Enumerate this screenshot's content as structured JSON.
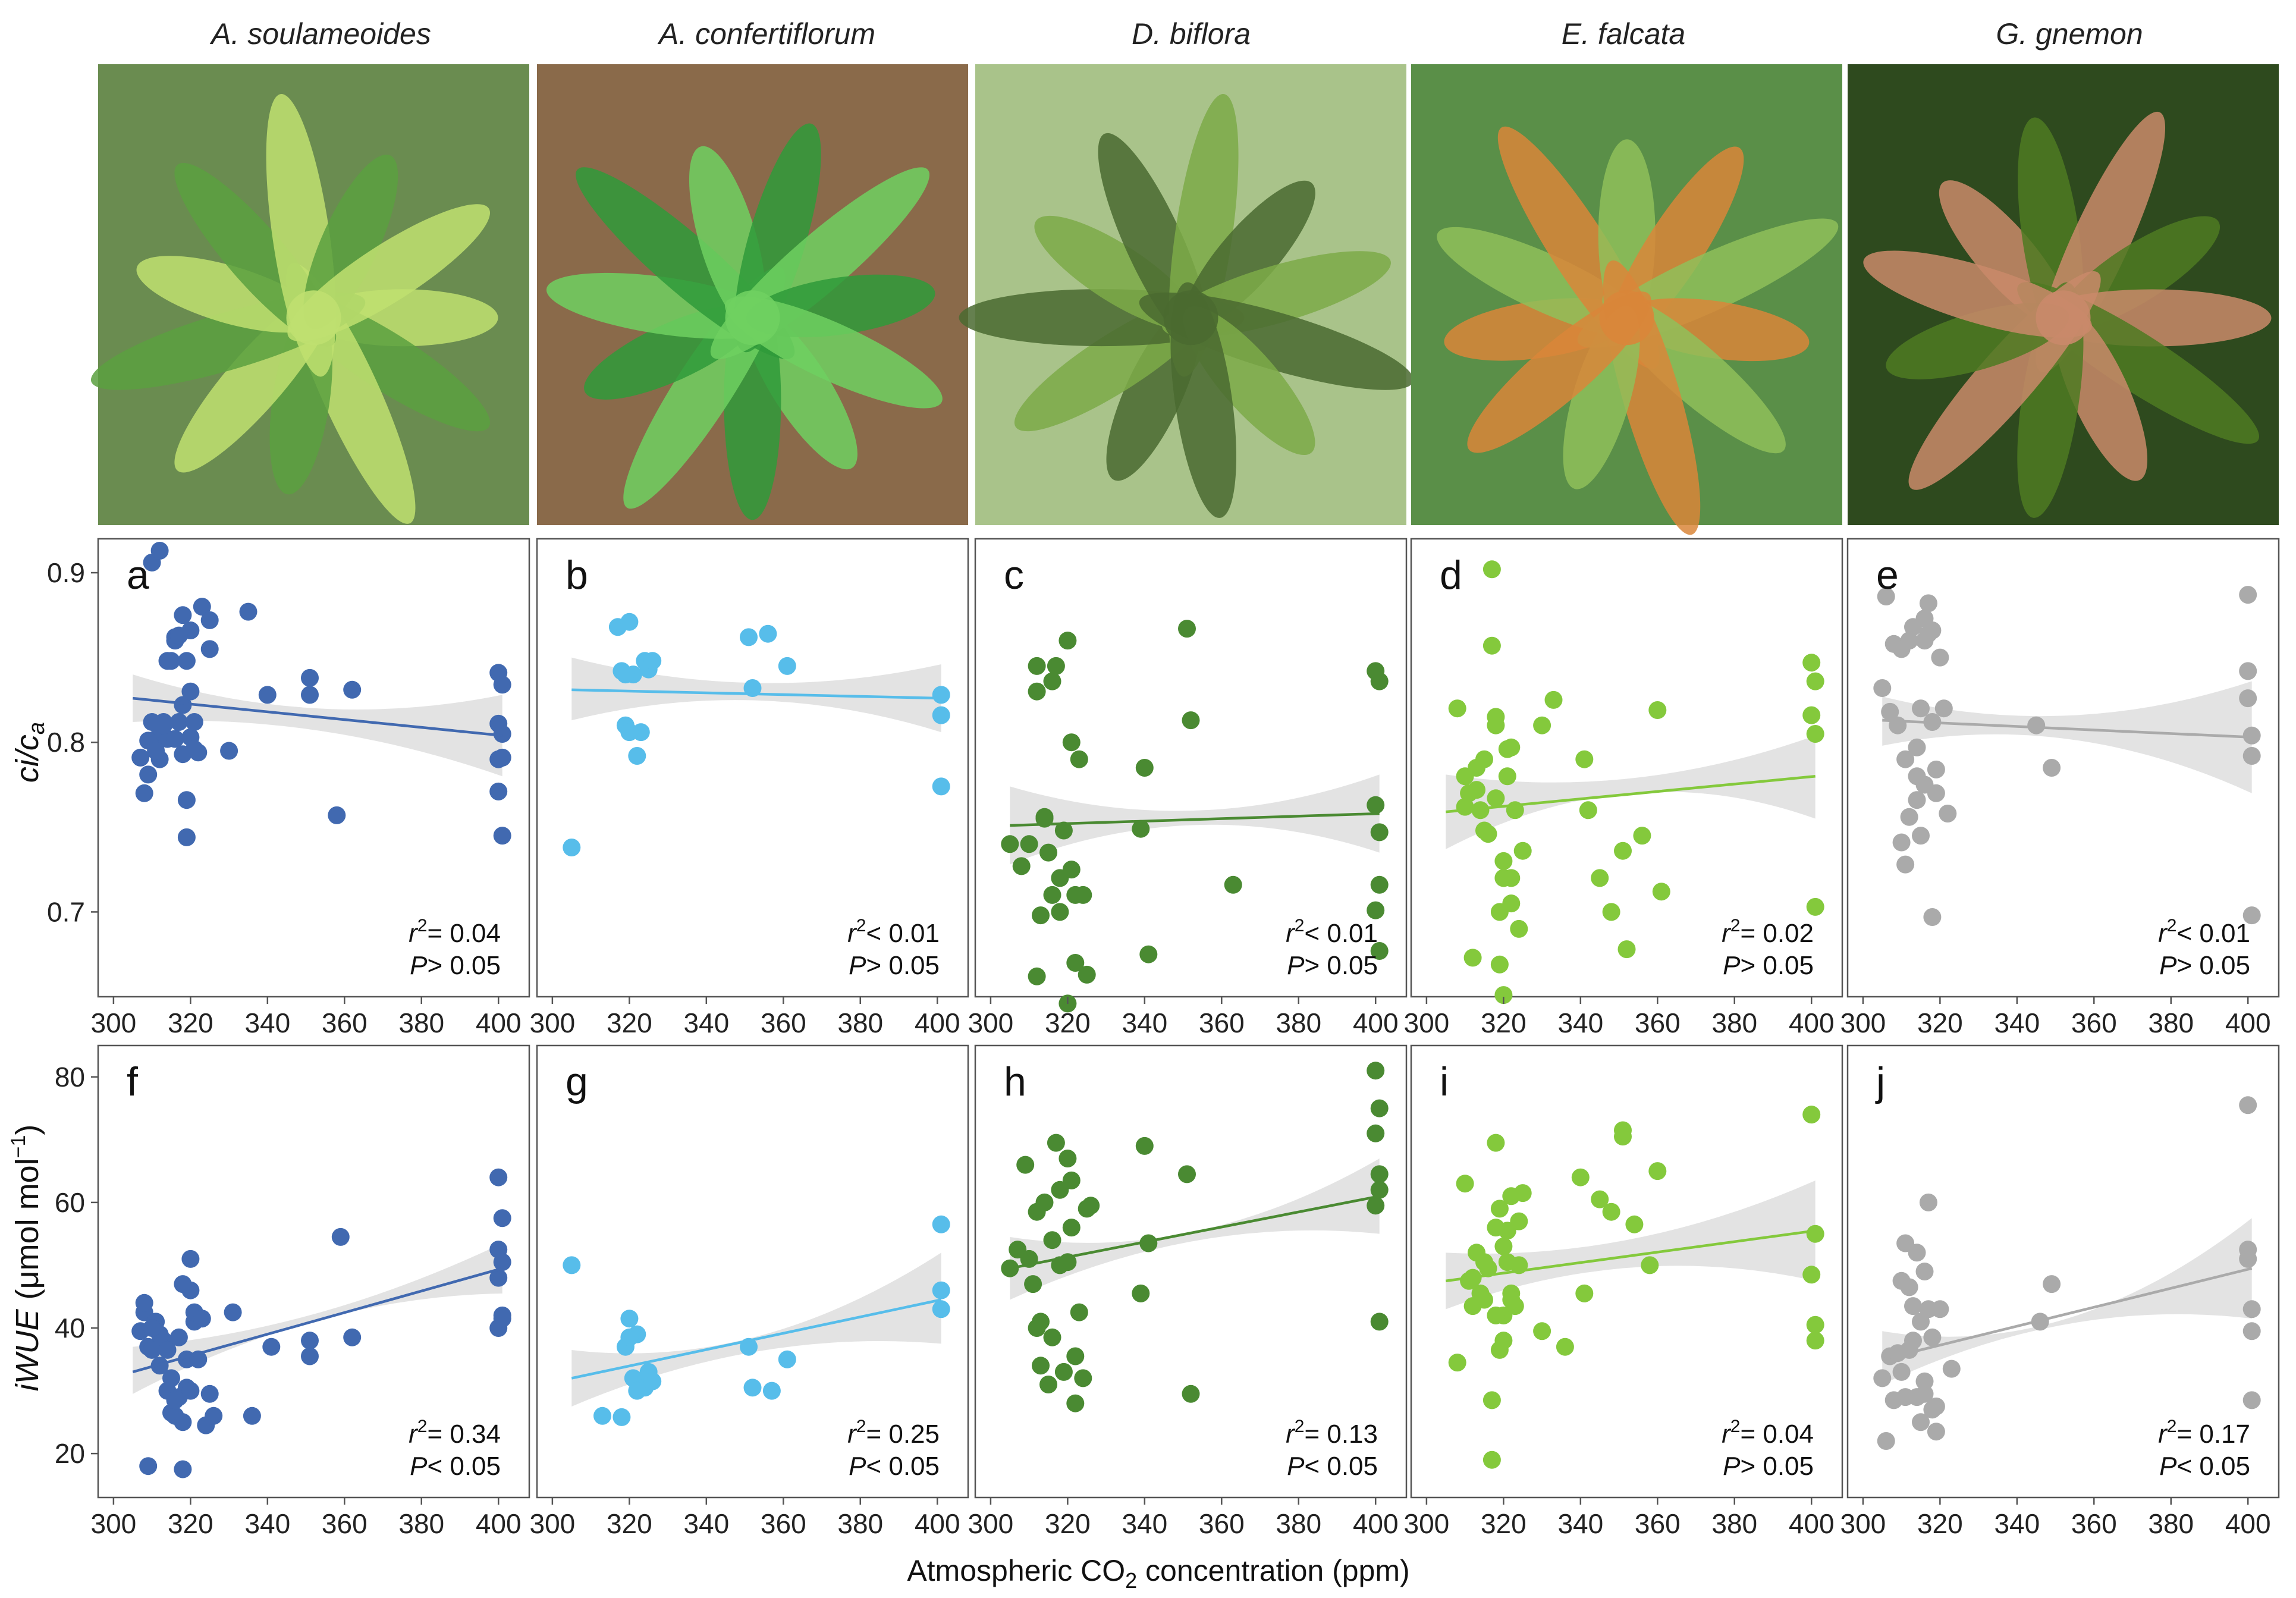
{
  "species": [
    "A. soulameoides",
    "A. confertiflorum",
    "D. biflora",
    "E. falcata",
    "G. gnemon"
  ],
  "colors": [
    "#4169b0",
    "#57bdea",
    "#4a8a32",
    "#84c93c",
    "#aaaaaa"
  ],
  "photo_palette": [
    {
      "bg": "#6a8c50",
      "leaf": "#5aa040",
      "accent": "#bfe070"
    },
    {
      "bg": "#8a6a4a",
      "leaf": "#2f9a3a",
      "accent": "#6fd060"
    },
    {
      "bg": "#a9c38a",
      "leaf": "#7caa48",
      "accent": "#4a6a30"
    },
    {
      "bg": "#5a8f48",
      "leaf": "#8fc05a",
      "accent": "#d9863a"
    },
    {
      "bg": "#2e4a1e",
      "leaf": "#4e7a22",
      "accent": "#c98a6a"
    }
  ],
  "xlabel": "Atmospheric CO2 concentration (ppm)",
  "xlabel_parts": {
    "pre": "Atmospheric CO",
    "sub": "2",
    "post": " concentration (ppm)"
  },
  "ylabel_top": {
    "ci": "ci/c",
    "sub": "a"
  },
  "ylabel_bottom": {
    "main": "iWUE",
    "unit": "(μmol mol",
    "sup": "−1",
    "close": ")"
  },
  "x_ticks": [
    "300",
    "320",
    "340",
    "360",
    "380",
    "400"
  ],
  "y_ticks_top": [
    "0.7",
    "0.8",
    "0.9"
  ],
  "y_ticks_bottom": [
    "20",
    "40",
    "60",
    "80"
  ],
  "chart_data": [
    {
      "panel": "a",
      "type": "scatter",
      "species": "A. soulameoides",
      "ylabel": "ci/ca",
      "xlim": [
        296,
        408
      ],
      "ylim": [
        0.65,
        0.92
      ],
      "fit": {
        "x": [
          305,
          401
        ],
        "y": [
          0.826,
          0.804
        ],
        "ci_lo": [
          0.812,
          0.78
        ],
        "ci_hi": [
          0.84,
          0.828
        ],
        "ci_mid": [
          0.806,
          0.818
        ]
      },
      "r2": "0.04",
      "p": "> 0.05",
      "x": [
        307,
        308,
        309,
        310,
        311,
        312,
        313,
        314,
        315,
        316,
        316,
        317,
        318,
        318,
        319,
        319,
        320,
        320,
        321,
        322,
        310,
        312,
        314,
        316,
        318,
        320,
        323,
        325,
        325,
        330,
        335,
        340,
        351,
        351,
        362,
        358,
        400,
        401,
        400,
        401,
        400,
        401,
        400,
        401,
        309,
        311,
        313,
        317,
        319,
        321
      ],
      "y": [
        0.791,
        0.77,
        0.781,
        0.812,
        0.802,
        0.79,
        0.812,
        0.802,
        0.848,
        0.862,
        0.802,
        0.812,
        0.822,
        0.793,
        0.766,
        0.744,
        0.83,
        0.803,
        0.812,
        0.794,
        0.906,
        0.913,
        0.848,
        0.86,
        0.875,
        0.866,
        0.88,
        0.855,
        0.872,
        0.795,
        0.877,
        0.828,
        0.838,
        0.828,
        0.831,
        0.757,
        0.841,
        0.834,
        0.811,
        0.805,
        0.79,
        0.791,
        0.771,
        0.745,
        0.801,
        0.795,
        0.81,
        0.863,
        0.848,
        0.796
      ]
    },
    {
      "panel": "b",
      "type": "scatter",
      "species": "A. confertiflorum",
      "ylabel": "ci/ca",
      "xlim": [
        296,
        408
      ],
      "ylim": [
        0.65,
        0.92
      ],
      "fit": {
        "x": [
          305,
          401
        ],
        "y": [
          0.831,
          0.826
        ],
        "ci_lo": [
          0.813,
          0.806
        ],
        "ci_hi": [
          0.85,
          0.846
        ],
        "ci_mid": [
          0.822,
          0.84
        ]
      },
      "r2": "< 0.01",
      "p": "> 0.05",
      "x": [
        305,
        317,
        319,
        320,
        321,
        322,
        323,
        324,
        325,
        326,
        318,
        319,
        320,
        351,
        352,
        356,
        361,
        401,
        401,
        401
      ],
      "y": [
        0.738,
        0.868,
        0.81,
        0.871,
        0.84,
        0.792,
        0.806,
        0.848,
        0.843,
        0.848,
        0.842,
        0.84,
        0.806,
        0.862,
        0.832,
        0.864,
        0.845,
        0.828,
        0.816,
        0.774
      ]
    },
    {
      "panel": "c",
      "type": "scatter",
      "species": "D. biflora",
      "ylabel": "ci/ca",
      "xlim": [
        296,
        408
      ],
      "ylim": [
        0.65,
        0.92
      ],
      "fit": {
        "x": [
          305,
          401
        ],
        "y": [
          0.751,
          0.758
        ],
        "ci_lo": [
          0.728,
          0.735
        ],
        "ci_hi": [
          0.774,
          0.781
        ],
        "ci_mid": [
          0.742,
          0.771
        ]
      },
      "r2": "< 0.01",
      "p": "> 0.05",
      "x": [
        305,
        308,
        310,
        312,
        312,
        313,
        314,
        315,
        316,
        316,
        317,
        318,
        319,
        320,
        321,
        321,
        322,
        322,
        323,
        324,
        325,
        340,
        341,
        339,
        351,
        352,
        363,
        400,
        401,
        400,
        401,
        401,
        400,
        401,
        320,
        318,
        314,
        312
      ],
      "y": [
        0.74,
        0.727,
        0.74,
        0.845,
        0.83,
        0.698,
        0.756,
        0.735,
        0.71,
        0.836,
        0.845,
        0.72,
        0.748,
        0.86,
        0.8,
        0.725,
        0.71,
        0.67,
        0.79,
        0.71,
        0.663,
        0.785,
        0.675,
        0.749,
        0.867,
        0.813,
        0.716,
        0.842,
        0.836,
        0.763,
        0.747,
        0.716,
        0.701,
        0.677,
        0.646,
        0.7,
        0.755,
        0.662
      ]
    },
    {
      "panel": "d",
      "type": "scatter",
      "species": "E. falcata",
      "ylabel": "ci/ca",
      "xlim": [
        296,
        408
      ],
      "ylim": [
        0.65,
        0.92
      ],
      "fit": {
        "x": [
          305,
          401
        ],
        "y": [
          0.759,
          0.78
        ],
        "ci_lo": [
          0.737,
          0.755
        ],
        "ci_hi": [
          0.781,
          0.804
        ],
        "ci_mid": [
          0.765,
          0.794
        ]
      },
      "r2": "0.02",
      "p": "> 0.05",
      "x": [
        308,
        310,
        311,
        312,
        313,
        314,
        315,
        316,
        317,
        317,
        318,
        318,
        319,
        319,
        320,
        320,
        321,
        321,
        322,
        322,
        323,
        324,
        325,
        330,
        333,
        341,
        342,
        345,
        348,
        351,
        352,
        356,
        360,
        361,
        400,
        401,
        400,
        401,
        401,
        310,
        313,
        315,
        318,
        320,
        322
      ],
      "y": [
        0.82,
        0.78,
        0.77,
        0.673,
        0.785,
        0.76,
        0.79,
        0.746,
        0.857,
        0.902,
        0.815,
        0.81,
        0.7,
        0.669,
        0.651,
        0.73,
        0.796,
        0.78,
        0.797,
        0.72,
        0.76,
        0.69,
        0.736,
        0.81,
        0.825,
        0.79,
        0.76,
        0.72,
        0.7,
        0.736,
        0.678,
        0.745,
        0.819,
        0.712,
        0.847,
        0.836,
        0.816,
        0.805,
        0.703,
        0.762,
        0.772,
        0.748,
        0.767,
        0.72,
        0.705
      ]
    },
    {
      "panel": "e",
      "type": "scatter",
      "species": "G. gnemon",
      "ylabel": "ci/ca",
      "xlim": [
        296,
        408
      ],
      "ylim": [
        0.65,
        0.92
      ],
      "fit": {
        "x": [
          305,
          401
        ],
        "y": [
          0.813,
          0.803
        ],
        "ci_lo": [
          0.798,
          0.77
        ],
        "ci_hi": [
          0.827,
          0.836
        ],
        "ci_mid": [
          0.8,
          0.82
        ]
      },
      "r2": "< 0.01",
      "p": "> 0.05",
      "x": [
        305,
        306,
        307,
        308,
        309,
        310,
        311,
        311,
        312,
        313,
        314,
        314,
        315,
        315,
        316,
        316,
        317,
        317,
        318,
        318,
        319,
        319,
        320,
        321,
        322,
        345,
        349,
        400,
        400,
        400,
        401,
        401,
        401,
        310,
        312,
        314,
        316,
        318
      ],
      "y": [
        0.832,
        0.886,
        0.818,
        0.858,
        0.81,
        0.855,
        0.728,
        0.79,
        0.86,
        0.868,
        0.797,
        0.78,
        0.745,
        0.82,
        0.873,
        0.86,
        0.864,
        0.882,
        0.866,
        0.697,
        0.77,
        0.784,
        0.85,
        0.82,
        0.758,
        0.81,
        0.785,
        0.887,
        0.842,
        0.826,
        0.804,
        0.792,
        0.698,
        0.741,
        0.756,
        0.766,
        0.775,
        0.812
      ]
    },
    {
      "panel": "f",
      "type": "scatter",
      "species": "A. soulameoides",
      "ylabel": "iWUE (μmol mol−1)",
      "xlim": [
        296,
        408
      ],
      "ylim": [
        13,
        85
      ],
      "fit": {
        "x": [
          305,
          401
        ],
        "y": [
          33.0,
          49.5
        ],
        "ci_lo": [
          29.5,
          45.5
        ],
        "ci_hi": [
          37.0,
          53.5
        ],
        "ci_mid": [
          39.5,
          45.0
        ]
      },
      "r2": "0.34",
      "p": "< 0.05",
      "x": [
        307,
        308,
        308,
        309,
        309,
        310,
        311,
        312,
        313,
        314,
        314,
        315,
        315,
        316,
        317,
        317,
        318,
        318,
        319,
        319,
        320,
        320,
        321,
        321,
        322,
        323,
        324,
        325,
        326,
        331,
        336,
        341,
        351,
        351,
        359,
        362,
        400,
        401,
        400,
        401,
        400,
        401,
        400,
        401,
        318,
        316,
        312,
        310,
        320
      ],
      "y": [
        39.5,
        42.5,
        44.0,
        37.0,
        18.0,
        36.5,
        41.0,
        39.0,
        38.0,
        30.0,
        36.5,
        26.5,
        32.0,
        26.0,
        38.5,
        29.0,
        17.5,
        25.0,
        30.5,
        35.0,
        46.0,
        51.0,
        41.0,
        42.5,
        35.0,
        41.5,
        24.5,
        29.5,
        26.0,
        42.5,
        26.0,
        37.0,
        38.0,
        35.5,
        54.5,
        38.5,
        64.0,
        57.5,
        52.5,
        50.5,
        48.0,
        42.0,
        40.0,
        41.5,
        47.0,
        28.5,
        34.0,
        40.0,
        30.0
      ]
    },
    {
      "panel": "g",
      "type": "scatter",
      "species": "A. confertiflorum",
      "ylabel": "iWUE (μmol mol−1)",
      "xlim": [
        296,
        408
      ],
      "ylim": [
        13,
        85
      ],
      "fit": {
        "x": [
          305,
          401
        ],
        "y": [
          32.0,
          44.5
        ],
        "ci_lo": [
          27.5,
          37.5
        ],
        "ci_hi": [
          36.5,
          52.0
        ],
        "ci_mid": [
          33.0,
          40.0
        ]
      },
      "r2": "0.25",
      "p": "< 0.05",
      "x": [
        305,
        313,
        318,
        319,
        320,
        321,
        322,
        323,
        324,
        325,
        326,
        320,
        322,
        351,
        352,
        357,
        361,
        401,
        401,
        401
      ],
      "y": [
        50.0,
        26.0,
        25.8,
        37.0,
        41.5,
        32.0,
        39.0,
        31.0,
        30.5,
        33.0,
        31.5,
        38.5,
        30.0,
        37.0,
        30.5,
        30.0,
        35.0,
        56.5,
        46.0,
        43.0
      ]
    },
    {
      "panel": "h",
      "type": "scatter",
      "species": "D. biflora",
      "ylabel": "iWUE (μmol mol−1)",
      "xlim": [
        296,
        408
      ],
      "ylim": [
        13,
        85
      ],
      "fit": {
        "x": [
          305,
          401
        ],
        "y": [
          49.5,
          61.0
        ],
        "ci_lo": [
          44.5,
          55.0
        ],
        "ci_hi": [
          54.5,
          67.0
        ],
        "ci_mid": [
          50.0,
          58.0
        ]
      },
      "r2": "0.13",
      "p": "< 0.05",
      "x": [
        305,
        307,
        309,
        310,
        311,
        312,
        313,
        313,
        314,
        315,
        316,
        317,
        318,
        318,
        319,
        320,
        321,
        321,
        322,
        322,
        323,
        324,
        325,
        326,
        339,
        340,
        341,
        351,
        352,
        400,
        401,
        400,
        401,
        401,
        400,
        401,
        312,
        316,
        320
      ],
      "y": [
        49.5,
        52.5,
        66.0,
        51.0,
        47.0,
        58.5,
        34.0,
        41.0,
        60.0,
        31.0,
        38.5,
        69.5,
        50.0,
        62.0,
        33.0,
        67.0,
        56.0,
        63.5,
        28.0,
        35.5,
        42.5,
        32.0,
        59.0,
        59.5,
        45.5,
        69.0,
        53.5,
        64.5,
        29.5,
        81.0,
        75.0,
        71.0,
        64.5,
        62.0,
        59.5,
        41.0,
        40.0,
        54.0,
        50.5
      ]
    },
    {
      "panel": "i",
      "type": "scatter",
      "species": "E. falcata",
      "ylabel": "iWUE (μmol mol−1)",
      "xlim": [
        296,
        408
      ],
      "ylim": [
        13,
        85
      ],
      "fit": {
        "x": [
          305,
          401
        ],
        "y": [
          47.5,
          55.5
        ],
        "ci_lo": [
          43.0,
          47.5
        ],
        "ci_hi": [
          52.0,
          63.5
        ],
        "ci_mid": [
          50.5,
          54.0
        ]
      },
      "r2": "0.04",
      "p": "> 0.05",
      "x": [
        308,
        310,
        311,
        312,
        313,
        314,
        315,
        316,
        317,
        317,
        318,
        318,
        319,
        319,
        320,
        320,
        321,
        321,
        322,
        322,
        323,
        324,
        325,
        330,
        336,
        340,
        341,
        345,
        348,
        351,
        351,
        354,
        358,
        360,
        400,
        401,
        400,
        401,
        401,
        312,
        315,
        318,
        320,
        322,
        324
      ],
      "y": [
        34.5,
        63.0,
        47.5,
        43.5,
        52.0,
        45.5,
        44.5,
        49.5,
        28.5,
        19.0,
        56.0,
        69.5,
        59.0,
        36.5,
        38.0,
        42.0,
        55.5,
        50.5,
        61.0,
        45.5,
        43.5,
        57.0,
        61.5,
        39.5,
        37.0,
        64.0,
        45.5,
        60.5,
        58.5,
        70.5,
        71.5,
        56.5,
        50.0,
        65.0,
        74.0,
        55.0,
        48.5,
        40.5,
        38.0,
        48.0,
        50.5,
        42.0,
        53.0,
        44.5,
        50.0
      ]
    },
    {
      "panel": "j",
      "type": "scatter",
      "species": "G. gnemon",
      "ylabel": "iWUE (μmol mol−1)",
      "xlim": [
        296,
        408
      ],
      "ylim": [
        13,
        85
      ],
      "fit": {
        "x": [
          305,
          401
        ],
        "y": [
          35.0,
          49.5
        ],
        "ci_lo": [
          31.0,
          41.5
        ],
        "ci_hi": [
          39.5,
          57.5
        ],
        "ci_mid": [
          34.5,
          45.0
        ]
      },
      "r2": "0.17",
      "p": "< 0.05",
      "x": [
        305,
        306,
        307,
        308,
        309,
        310,
        311,
        311,
        312,
        313,
        313,
        314,
        315,
        315,
        316,
        316,
        317,
        317,
        318,
        318,
        319,
        319,
        320,
        323,
        346,
        349,
        400,
        400,
        400,
        401,
        401,
        401,
        310,
        312,
        314,
        316
      ],
      "y": [
        32.0,
        22.0,
        35.5,
        28.5,
        36.0,
        47.5,
        53.5,
        29.0,
        46.5,
        38.0,
        43.5,
        52.0,
        25.0,
        41.0,
        49.0,
        29.5,
        43.0,
        60.0,
        27.0,
        38.5,
        23.5,
        27.5,
        43.0,
        33.5,
        41.0,
        47.0,
        75.5,
        52.5,
        51.0,
        43.0,
        39.5,
        28.5,
        33.0,
        36.5,
        29.0,
        31.5
      ]
    }
  ]
}
